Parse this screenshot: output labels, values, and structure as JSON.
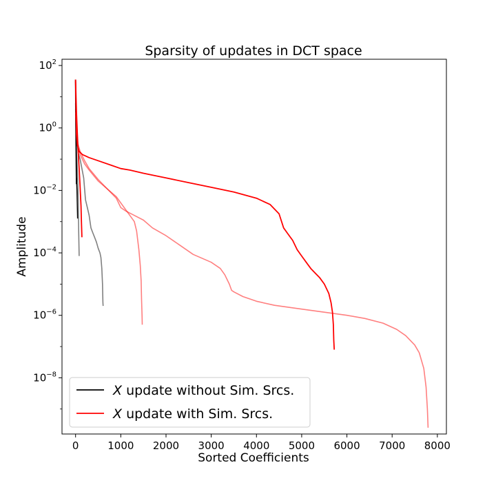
{
  "chart_data": {
    "type": "line",
    "title": "Sparsity of updates in DCT space",
    "xlabel": "Sorted Coefficients",
    "ylabel": "Amplitude",
    "xscale": "linear",
    "yscale": "log",
    "xlim": [
      -300,
      8200
    ],
    "ylim_exp": [
      -9.8,
      2.2
    ],
    "xticks": [
      0,
      1000,
      2000,
      3000,
      4000,
      5000,
      6000,
      7000,
      8000
    ],
    "xtick_labels": [
      "0",
      "1000",
      "2000",
      "3000",
      "4000",
      "5000",
      "6000",
      "7000",
      "8000"
    ],
    "yticks_exp": [
      2,
      0,
      -2,
      -4,
      -6,
      -8
    ],
    "ytick_labels": [
      {
        "base": "10",
        "exp": "2"
      },
      {
        "base": "10",
        "exp": "0"
      },
      {
        "base": "10",
        "exp": "−2"
      },
      {
        "base": "10",
        "exp": "−4"
      },
      {
        "base": "10",
        "exp": "−6"
      },
      {
        "base": "10",
        "exp": "−8"
      }
    ],
    "grid": false,
    "legend": {
      "position": "lower-left",
      "entries": [
        {
          "label_italic": "X",
          "label_rest": " update without Sim. Srcs.",
          "color": "#000000"
        },
        {
          "label_italic": "X",
          "label_rest": " update with Sim. Srcs.",
          "color": "#ff0000"
        }
      ]
    },
    "series": [
      {
        "color": "#000000",
        "opacity": 0.5,
        "width": 1.6,
        "points": [
          [
            0,
            0.8
          ],
          [
            5,
            0.2
          ],
          [
            10,
            -0.1
          ],
          [
            15,
            -0.45
          ],
          [
            22,
            -0.8
          ],
          [
            30,
            -1.05
          ],
          [
            40,
            -1.35
          ],
          [
            50,
            -1.75
          ],
          [
            60,
            -2.4
          ],
          [
            70,
            -3.4
          ],
          [
            80,
            -4.1
          ]
        ]
      },
      {
        "color": "#000000",
        "opacity": 0.5,
        "width": 1.6,
        "points": [
          [
            0,
            0.6
          ],
          [
            30,
            -0.4
          ],
          [
            60,
            -0.8
          ],
          [
            100,
            -1.0
          ],
          [
            140,
            -1.3
          ],
          [
            180,
            -1.6
          ],
          [
            220,
            -2.3
          ],
          [
            260,
            -2.55
          ],
          [
            300,
            -2.8
          ],
          [
            340,
            -3.2
          ],
          [
            380,
            -3.35
          ],
          [
            420,
            -3.5
          ],
          [
            460,
            -3.65
          ],
          [
            500,
            -3.85
          ],
          [
            540,
            -4.0
          ],
          [
            560,
            -4.15
          ],
          [
            580,
            -4.5
          ],
          [
            595,
            -5.0
          ],
          [
            605,
            -5.6
          ],
          [
            610,
            -5.7
          ]
        ]
      },
      {
        "color": "#000000",
        "opacity": 1,
        "width": 1.8,
        "points": [
          [
            0,
            1.55
          ],
          [
            3,
            0.8
          ],
          [
            6,
            0.2
          ],
          [
            10,
            -0.5
          ],
          [
            15,
            -1.2
          ],
          [
            20,
            -1.8
          ]
        ]
      },
      {
        "color": "#000000",
        "opacity": 1,
        "width": 1.4,
        "points": [
          [
            20,
            -1.6
          ],
          [
            30,
            -2.0
          ],
          [
            40,
            -2.6
          ],
          [
            45,
            -2.9
          ]
        ]
      },
      {
        "color": "#ff0000",
        "opacity": 0.5,
        "width": 1.6,
        "points": [
          [
            0,
            0.5
          ],
          [
            50,
            -0.6
          ],
          [
            100,
            -0.85
          ],
          [
            200,
            -1.15
          ],
          [
            300,
            -1.35
          ],
          [
            500,
            -1.7
          ],
          [
            700,
            -1.95
          ],
          [
            900,
            -2.2
          ],
          [
            1000,
            -2.4
          ],
          [
            1100,
            -2.6
          ],
          [
            1200,
            -2.8
          ],
          [
            1300,
            -3.0
          ],
          [
            1350,
            -3.3
          ],
          [
            1400,
            -3.9
          ],
          [
            1430,
            -4.4
          ],
          [
            1450,
            -4.9
          ],
          [
            1460,
            -5.5
          ],
          [
            1470,
            -6.0
          ],
          [
            1475,
            -6.3
          ]
        ]
      },
      {
        "color": "#ff0000",
        "opacity": 0.5,
        "width": 1.6,
        "points": [
          [
            0,
            0.4
          ],
          [
            50,
            -0.5
          ],
          [
            100,
            -0.75
          ],
          [
            200,
            -1.05
          ],
          [
            300,
            -1.3
          ],
          [
            500,
            -1.65
          ],
          [
            700,
            -1.95
          ],
          [
            900,
            -2.25
          ],
          [
            1000,
            -2.55
          ],
          [
            1100,
            -2.65
          ],
          [
            1300,
            -2.8
          ],
          [
            1500,
            -2.95
          ],
          [
            1700,
            -3.2
          ],
          [
            2000,
            -3.45
          ],
          [
            2300,
            -3.75
          ],
          [
            2600,
            -4.05
          ],
          [
            3000,
            -4.3
          ],
          [
            3200,
            -4.5
          ],
          [
            3300,
            -4.7
          ],
          [
            3400,
            -5.0
          ],
          [
            3450,
            -5.2
          ],
          [
            3500,
            -5.25
          ],
          [
            3700,
            -5.4
          ],
          [
            4000,
            -5.55
          ],
          [
            4400,
            -5.68
          ],
          [
            5000,
            -5.8
          ],
          [
            5500,
            -5.9
          ],
          [
            6000,
            -6.0
          ],
          [
            6400,
            -6.1
          ],
          [
            6800,
            -6.25
          ],
          [
            7100,
            -6.45
          ],
          [
            7300,
            -6.65
          ],
          [
            7500,
            -6.95
          ],
          [
            7600,
            -7.2
          ],
          [
            7700,
            -7.7
          ],
          [
            7750,
            -8.3
          ],
          [
            7780,
            -9.0
          ],
          [
            7795,
            -9.6
          ]
        ]
      },
      {
        "color": "#ff0000",
        "opacity": 1,
        "width": 1.8,
        "points": [
          [
            0,
            1.55
          ],
          [
            10,
            0.5
          ],
          [
            20,
            -0.2
          ],
          [
            40,
            -0.55
          ],
          [
            80,
            -0.75
          ],
          [
            150,
            -0.85
          ],
          [
            300,
            -0.95
          ],
          [
            500,
            -1.05
          ],
          [
            800,
            -1.2
          ],
          [
            1000,
            -1.3
          ],
          [
            1200,
            -1.35
          ],
          [
            1500,
            -1.45
          ],
          [
            2000,
            -1.6
          ],
          [
            2500,
            -1.75
          ],
          [
            3000,
            -1.9
          ],
          [
            3500,
            -2.05
          ],
          [
            4000,
            -2.25
          ],
          [
            4300,
            -2.45
          ],
          [
            4500,
            -2.75
          ],
          [
            4600,
            -3.2
          ],
          [
            4700,
            -3.4
          ],
          [
            4800,
            -3.6
          ],
          [
            4900,
            -3.9
          ],
          [
            5000,
            -4.1
          ],
          [
            5100,
            -4.3
          ],
          [
            5200,
            -4.5
          ],
          [
            5300,
            -4.65
          ],
          [
            5400,
            -4.8
          ],
          [
            5500,
            -5.0
          ],
          [
            5600,
            -5.3
          ],
          [
            5650,
            -5.6
          ],
          [
            5680,
            -5.9
          ],
          [
            5700,
            -6.3
          ],
          [
            5710,
            -6.8
          ],
          [
            5720,
            -7.1
          ]
        ]
      },
      {
        "color": "#ff0000",
        "opacity": 1,
        "width": 1.8,
        "points": [
          [
            0,
            1.5
          ],
          [
            20,
            0.5
          ],
          [
            40,
            -0.2
          ],
          [
            60,
            -0.8
          ],
          [
            80,
            -1.3
          ],
          [
            100,
            -1.9
          ],
          [
            120,
            -2.5
          ],
          [
            130,
            -3.0
          ],
          [
            140,
            -3.5
          ]
        ]
      }
    ]
  }
}
